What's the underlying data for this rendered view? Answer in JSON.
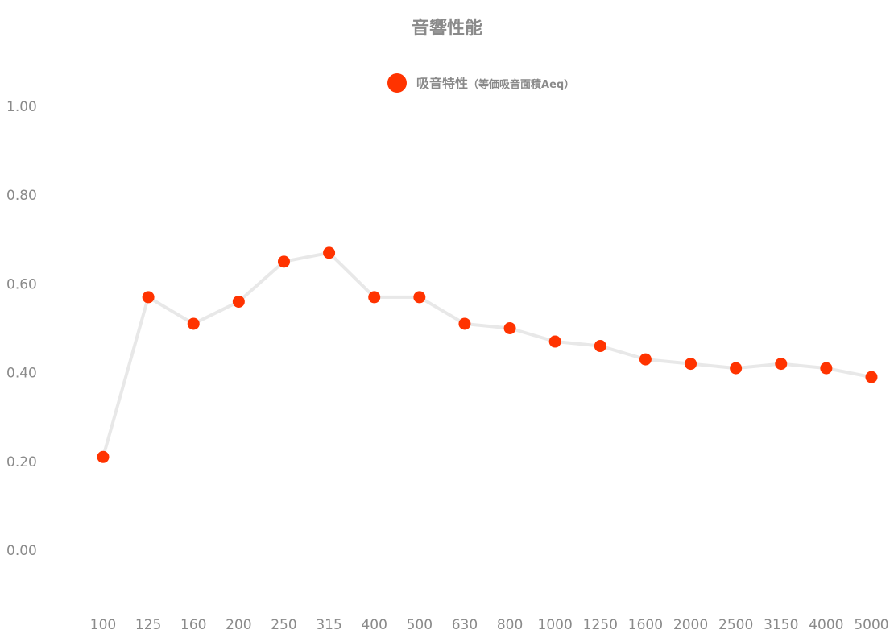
{
  "chart_data": {
    "type": "line",
    "title": "音響性能",
    "series": [
      {
        "name": "吸音特性",
        "name_suffix": "（等価吸音面積Aeq）",
        "color": "#ff3300",
        "line_color": "#e8e8e8",
        "values": [
          0.21,
          0.57,
          0.51,
          0.56,
          0.65,
          0.67,
          0.57,
          0.57,
          0.51,
          0.5,
          0.47,
          0.46,
          0.43,
          0.42,
          0.41,
          0.42,
          0.41,
          0.39
        ]
      }
    ],
    "categories": [
      "100",
      "125",
      "160",
      "200",
      "250",
      "315",
      "400",
      "500",
      "630",
      "800",
      "1000",
      "1250",
      "1600",
      "2000",
      "2500",
      "3150",
      "4000",
      "5000"
    ],
    "y_ticks": [
      "1.00",
      "0.80",
      "0.60",
      "0.40",
      "0.20",
      "0.00"
    ],
    "ylim": [
      -0.1,
      1.0
    ],
    "grid": false,
    "legend_position": "top"
  }
}
